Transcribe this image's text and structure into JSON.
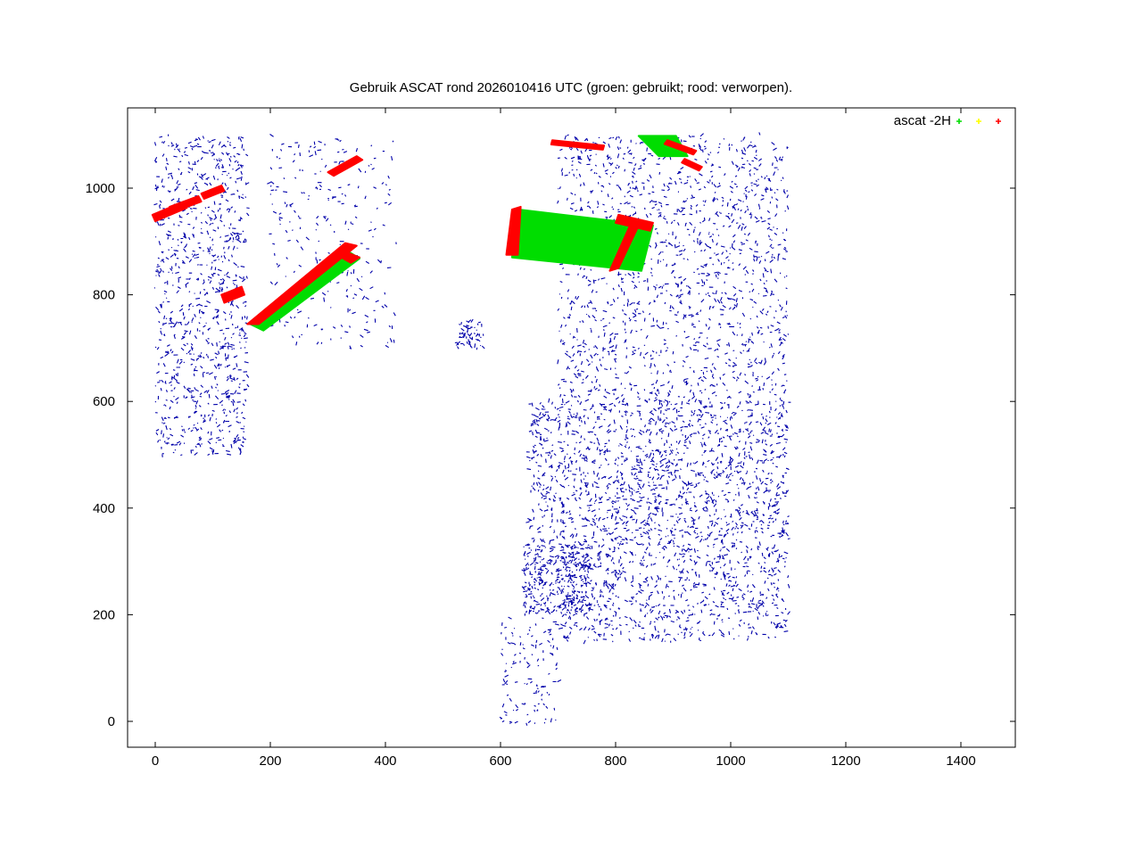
{
  "chart_data": {
    "type": "scatter",
    "title": "Gebruik ASCAT rond 2026010416 UTC (groen: gebruikt; rood: verworpen).",
    "xlabel": "",
    "ylabel": "",
    "xlim": [
      -50,
      1490
    ],
    "ylim": [
      -50,
      1120
    ],
    "x_ticks": [
      0,
      200,
      400,
      600,
      800,
      1000,
      1200,
      1400
    ],
    "y_ticks": [
      0,
      200,
      400,
      600,
      800,
      1000
    ],
    "x_tick_labels": [
      "0",
      "200",
      "400",
      "600",
      "800",
      "1000",
      "1200",
      "1400"
    ],
    "y_tick_labels": [
      "0",
      "200",
      "400",
      "600",
      "800",
      "1000"
    ],
    "grid": false,
    "legend_position": "top-right",
    "legend": {
      "label": "ascat -2H",
      "series": [
        {
          "marker": "+",
          "color": "#00dd00"
        },
        {
          "marker": "+",
          "color": "#ffff00"
        },
        {
          "marker": "+",
          "color": "#ff0000"
        }
      ]
    },
    "coastline_color": "#0000aa",
    "series": [
      {
        "color": "#00dd00",
        "swaths": [
          {
            "polygon": [
              [
                165,
                745
              ],
              [
                330,
                885
              ],
              [
                355,
                868
              ],
              [
                188,
                733
              ]
            ]
          },
          {
            "polygon": [
              [
                630,
                960
              ],
              [
                865,
                930
              ],
              [
                845,
                845
              ],
              [
                620,
                870
              ]
            ]
          },
          {
            "polygon": [
              [
                840,
                1098
              ],
              [
                905,
                1098
              ],
              [
                925,
                1060
              ],
              [
                875,
                1060
              ]
            ]
          }
        ]
      },
      {
        "color": "#ff0000",
        "swaths": [
          {
            "polygon": [
              [
                160,
                745
              ],
              [
                180,
                745
              ],
              [
                350,
                892
              ],
              [
                330,
                897
              ]
            ]
          },
          {
            "polygon": [
              [
                315,
                875
              ],
              [
                340,
                860
              ],
              [
                355,
                870
              ],
              [
                332,
                880
              ]
            ]
          },
          {
            "polygon": [
              [
                300,
                1030
              ],
              [
                350,
                1060
              ],
              [
                360,
                1053
              ],
              [
                310,
                1023
              ]
            ]
          },
          {
            "polygon": [
              [
                25,
                965
              ],
              [
                75,
                985
              ],
              [
                80,
                975
              ],
              [
                30,
                955
              ]
            ]
          },
          {
            "polygon": [
              [
                80,
                990
              ],
              [
                115,
                1005
              ],
              [
                120,
                995
              ],
              [
                85,
                980
              ]
            ]
          },
          {
            "polygon": [
              [
                -5,
                950
              ],
              [
                50,
                975
              ],
              [
                55,
                963
              ],
              [
                0,
                938
              ]
            ]
          },
          {
            "polygon": [
              [
                120,
                785
              ],
              [
                155,
                800
              ],
              [
                150,
                815
              ],
              [
                115,
                800
              ]
            ]
          },
          {
            "polygon": [
              [
                620,
                960
              ],
              [
                635,
                965
              ],
              [
                630,
                875
              ],
              [
                610,
                875
              ]
            ]
          },
          {
            "polygon": [
              [
                805,
                950
              ],
              [
                865,
                935
              ],
              [
                860,
                920
              ],
              [
                800,
                935
              ]
            ]
          },
          {
            "polygon": [
              [
                790,
                845
              ],
              [
                805,
                850
              ],
              [
                840,
                930
              ],
              [
                825,
                930
              ]
            ]
          },
          {
            "polygon": [
              [
                690,
                1090
              ],
              [
                780,
                1080
              ],
              [
                778,
                1072
              ],
              [
                688,
                1082
              ]
            ]
          },
          {
            "polygon": [
              [
                890,
                1090
              ],
              [
                940,
                1070
              ],
              [
                935,
                1063
              ],
              [
                885,
                1083
              ]
            ]
          },
          {
            "polygon": [
              [
                920,
                1055
              ],
              [
                950,
                1040
              ],
              [
                945,
                1033
              ],
              [
                915,
                1048
              ]
            ]
          }
        ]
      }
    ]
  }
}
